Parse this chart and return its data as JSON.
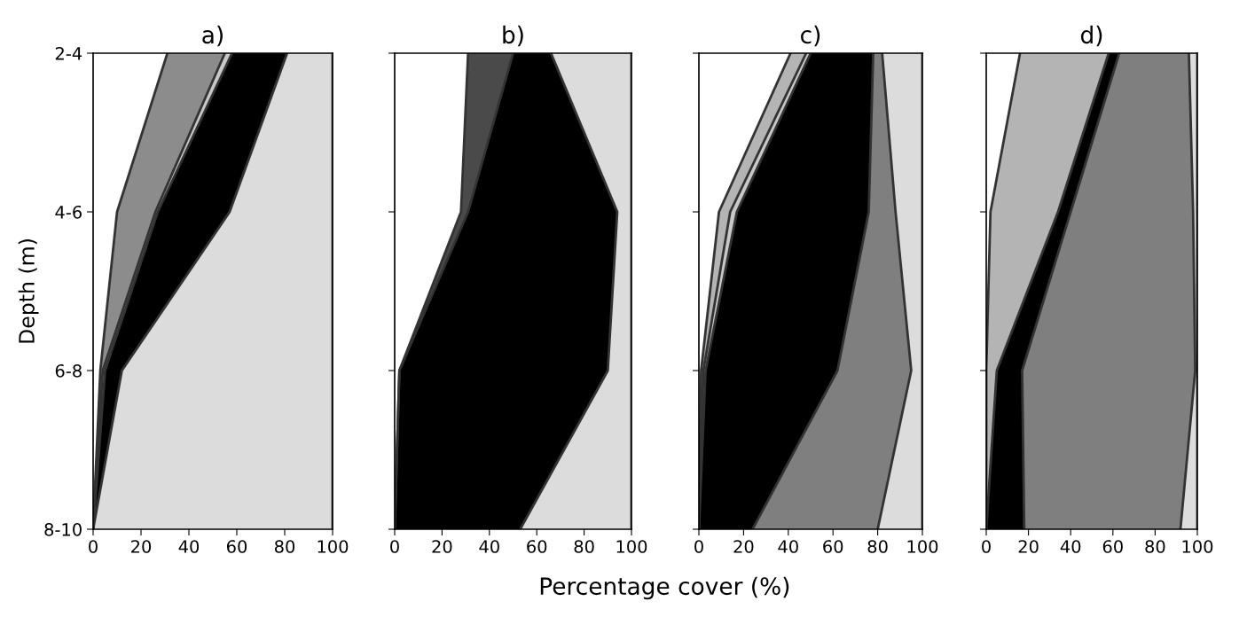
{
  "chart_data": [
    {
      "type": "area",
      "orientation": "horizontal",
      "stacked": true,
      "title": "a)",
      "ylabel": "Depth (m)",
      "categories": [
        "2-4",
        "4-6",
        "6-8",
        "8-10"
      ],
      "xlim": [
        0,
        100
      ],
      "xticks": [
        0,
        20,
        40,
        60,
        80,
        100
      ],
      "grid": false,
      "series": [
        {
          "color": "#ffffff",
          "values": [
            31,
            10,
            3,
            0
          ]
        },
        {
          "color": "#8c8c8c",
          "values": [
            24,
            16,
            1,
            0
          ]
        },
        {
          "color": "#c8c8c8",
          "values": [
            3,
            1,
            1,
            0
          ]
        },
        {
          "color": "#000000",
          "values": [
            23,
            30,
            7,
            0
          ]
        },
        {
          "color": "#dcdcdc",
          "values": [
            19,
            43,
            88,
            100
          ]
        }
      ]
    },
    {
      "type": "area",
      "orientation": "horizontal",
      "stacked": true,
      "title": "b)",
      "xlabel": "Percentage cover (%)",
      "categories": [
        null,
        null,
        null,
        null
      ],
      "xlim": [
        0,
        100
      ],
      "xticks": [
        0,
        20,
        40,
        60,
        80,
        100
      ],
      "grid": false,
      "series": [
        {
          "color": "#ffffff",
          "values": [
            31,
            28,
            2,
            0
          ]
        },
        {
          "color": "#4a4a4a",
          "values": [
            19,
            3,
            0,
            0
          ]
        },
        {
          "color": "#000000",
          "values": [
            16,
            63,
            88,
            53
          ]
        },
        {
          "color": "#dcdcdc",
          "values": [
            34,
            6,
            10,
            47
          ]
        }
      ]
    },
    {
      "type": "area",
      "orientation": "horizontal",
      "stacked": true,
      "title": "c)",
      "categories": [
        null,
        null,
        null,
        null
      ],
      "xlim": [
        0,
        100
      ],
      "xticks": [
        0,
        20,
        40,
        60,
        80,
        100
      ],
      "grid": false,
      "series": [
        {
          "color": "#ffffff",
          "values": [
            41,
            9,
            1,
            0
          ]
        },
        {
          "color": "#b4b4b4",
          "values": [
            7,
            5,
            1,
            0
          ]
        },
        {
          "color": "#c8c8c8",
          "values": [
            2,
            3,
            1,
            0
          ]
        },
        {
          "color": "#000000",
          "values": [
            28,
            59,
            59,
            24
          ]
        },
        {
          "color": "#7f7f7f",
          "values": [
            4,
            12,
            33,
            56
          ]
        },
        {
          "color": "#dcdcdc",
          "values": [
            18,
            12,
            5,
            20
          ]
        }
      ]
    },
    {
      "type": "area",
      "orientation": "horizontal",
      "stacked": true,
      "title": "d)",
      "categories": [
        null,
        null,
        null,
        null
      ],
      "xlim": [
        0,
        100
      ],
      "xticks": [
        0,
        20,
        40,
        60,
        80,
        100
      ],
      "grid": false,
      "series": [
        {
          "color": "#ffffff",
          "values": [
            16,
            2,
            0,
            0
          ]
        },
        {
          "color": "#b4b4b4",
          "values": [
            42,
            32,
            5,
            0
          ]
        },
        {
          "color": "#000000",
          "values": [
            5,
            6,
            12,
            18
          ]
        },
        {
          "color": "#7f7f7f",
          "values": [
            33,
            58,
            82,
            74
          ]
        },
        {
          "color": "#dcdcdc",
          "values": [
            4,
            2,
            1,
            8
          ]
        }
      ]
    }
  ]
}
